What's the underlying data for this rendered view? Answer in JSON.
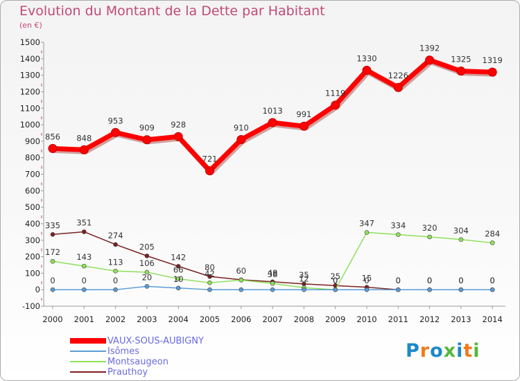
{
  "header": {
    "title": "Evolution du Montant de la Dette par Habitant",
    "unit": "(en €)"
  },
  "chart_data": {
    "type": "line",
    "title": "Evolution du Montant de la Dette par Habitant",
    "subtitle": "(en €)",
    "xlabel": "",
    "ylabel": "",
    "x": [
      "2000",
      "2001",
      "2002",
      "2003",
      "2004",
      "2005",
      "2006",
      "2007",
      "2008",
      "2009",
      "2010",
      "2011",
      "2012",
      "2013",
      "2014"
    ],
    "ylim": [
      -100,
      1500
    ],
    "yticks": [
      -100,
      0,
      100,
      200,
      300,
      400,
      500,
      600,
      700,
      800,
      900,
      1000,
      1100,
      1200,
      1300,
      1400,
      1500
    ],
    "grid": false,
    "legend_position": "bottom-left",
    "series": [
      {
        "name": "VAUX-SOUS-AUBIGNY",
        "color": "#ff0000",
        "values": [
          856,
          848,
          953,
          909,
          928,
          721,
          910,
          1013,
          991,
          1119,
          1330,
          1226,
          1392,
          1325,
          1319
        ]
      },
      {
        "name": "Isômes",
        "color": "#5b9bd5",
        "values": [
          0,
          0,
          0,
          20,
          10,
          0,
          0,
          0,
          0,
          0,
          0,
          0,
          0,
          0,
          0
        ]
      },
      {
        "name": "Montsaugeon",
        "color": "#8ee05a",
        "values": [
          172,
          143,
          113,
          106,
          66,
          42,
          58,
          38,
          12,
          0,
          347,
          334,
          320,
          304,
          284
        ]
      },
      {
        "name": "Prauthoy",
        "color": "#7b2020",
        "values": [
          335,
          351,
          274,
          205,
          142,
          80,
          60,
          48,
          35,
          25,
          15,
          0,
          0,
          0,
          0
        ]
      }
    ],
    "data_labels": [
      {
        "series": "VAUX-SOUS-AUBIGNY",
        "labels": [
          "856",
          "848",
          "953",
          "909",
          "928",
          "721",
          "910",
          "1013",
          "991",
          "1119",
          "1330",
          "1226",
          "1392",
          "1325",
          "1319"
        ]
      },
      {
        "series": "Isômes",
        "labels": [
          "0",
          "0",
          "0",
          "20",
          "10",
          "",
          "",
          "",
          "",
          "0",
          "0",
          "0",
          "0",
          "0",
          "0"
        ]
      },
      {
        "series": "Montsaugeon",
        "labels": [
          "172",
          "143",
          "113",
          "106",
          "66",
          "42",
          "",
          "38",
          "12",
          "0",
          "347",
          "334",
          "320",
          "304",
          "284"
        ]
      },
      {
        "series": "Prauthoy",
        "labels": [
          "335",
          "351",
          "274",
          "205",
          "142",
          "80",
          "60",
          "48",
          "35",
          "25",
          "15",
          "0",
          "0",
          "0",
          "0"
        ]
      }
    ]
  },
  "logo": {
    "text": "Proxiti",
    "colors": [
      "#1e88c8",
      "#f07a1a",
      "#1e88c8",
      "#55b83a",
      "#1e88c8",
      "#f07a1a",
      "#55b83a"
    ]
  }
}
